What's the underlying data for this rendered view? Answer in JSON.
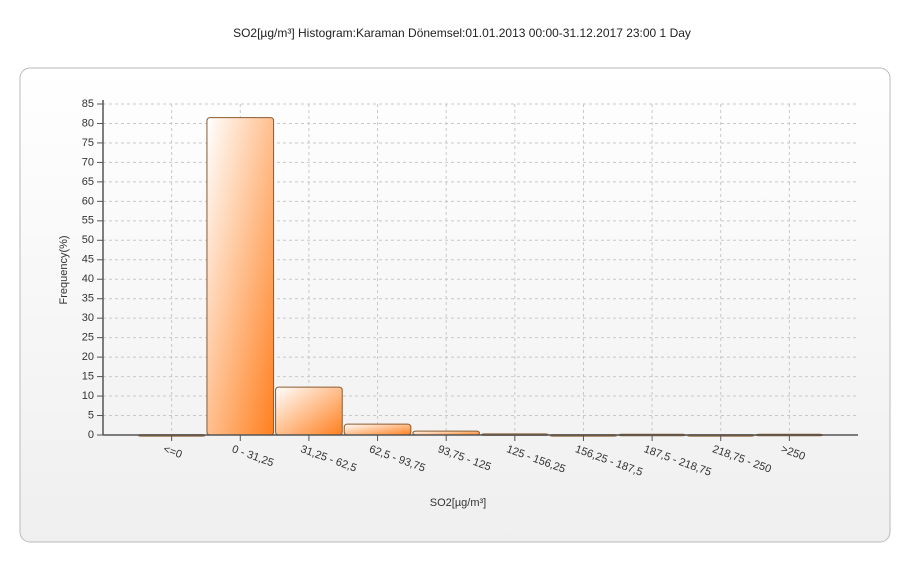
{
  "chart_data": {
    "type": "bar",
    "title": "SO2[µg/m³] Histogram:Karaman  Dönemsel:01.01.2013 00:00-31.12.2017 23:00 1 Day",
    "x_label": "SO2[µg/m³]",
    "y_label": "Frequency(%)",
    "categories": [
      "<=0",
      "0 - 31,25",
      "31,25 - 62,5",
      "62,5 - 93,75",
      "93,75 - 125",
      "125 - 156,25",
      "156,25 - 187,5",
      "187,5 - 218,75",
      "218,75 - 250",
      ">250"
    ],
    "values": [
      0.1,
      81.5,
      12.3,
      2.8,
      1.0,
      0.3,
      0.1,
      0.2,
      0.1,
      0.2
    ],
    "color": "#ff7f1e",
    "ylim": [
      0,
      85
    ],
    "yticks": [
      0,
      5,
      10,
      15,
      20,
      25,
      30,
      35,
      40,
      45,
      50,
      55,
      60,
      65,
      70,
      75,
      80,
      85
    ],
    "grid": true
  }
}
